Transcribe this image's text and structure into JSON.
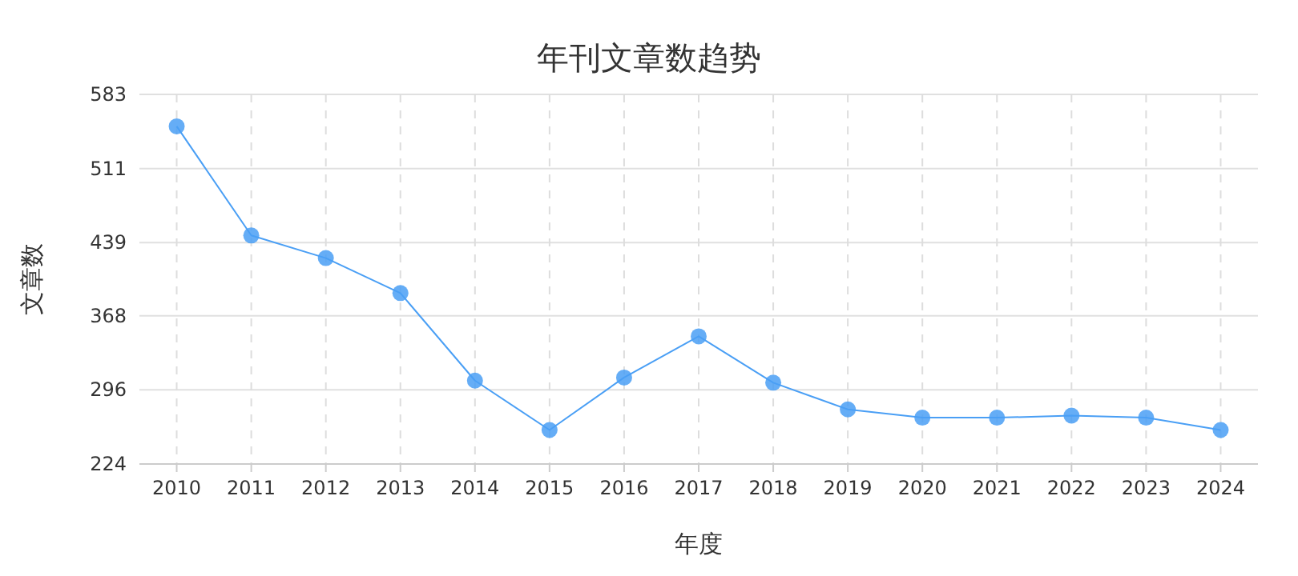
{
  "chart_data": {
    "type": "line",
    "title": "年刊文章数趋势",
    "xlabel": "年度",
    "ylabel": "文章数",
    "categories": [
      "2010",
      "2011",
      "2012",
      "2013",
      "2014",
      "2015",
      "2016",
      "2017",
      "2018",
      "2019",
      "2020",
      "2021",
      "2022",
      "2023",
      "2024"
    ],
    "series": [
      {
        "color": "#4a9ff5",
        "values": [
          552,
          446,
          424,
          390,
          305,
          257,
          308,
          348,
          303,
          277,
          269,
          269,
          271,
          269,
          257
        ]
      }
    ],
    "ylim": [
      224,
      583
    ],
    "yticks": [
      224,
      296,
      368,
      439,
      511,
      583
    ],
    "grid": true,
    "marker": "circle",
    "line_style": "solid"
  }
}
